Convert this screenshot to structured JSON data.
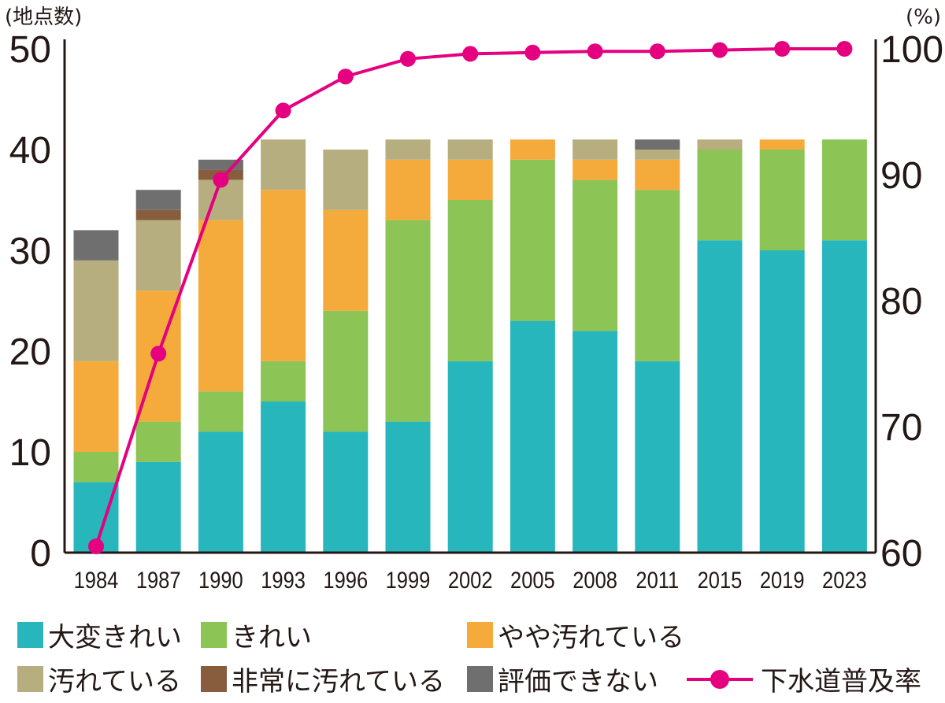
{
  "chart_data": {
    "type": "bar",
    "stacked": true,
    "categories": [
      "1984",
      "1987",
      "1990",
      "1993",
      "1996",
      "1999",
      "2002",
      "2005",
      "2008",
      "2011",
      "2015",
      "2019",
      "2023"
    ],
    "left_axis": {
      "label": "(地点数)",
      "range": [
        0,
        50
      ],
      "ticks": [
        0,
        10,
        20,
        30,
        40,
        50
      ]
    },
    "right_axis": {
      "label": "(%)",
      "range": [
        60,
        100
      ],
      "ticks": [
        60,
        70,
        80,
        90,
        100
      ]
    },
    "grid": false,
    "legend_position": "bottom",
    "series": [
      {
        "name": "大変きれい",
        "color": "#27B6BC",
        "axis": "left",
        "values": [
          7,
          9,
          12,
          15,
          12,
          13,
          19,
          23,
          22,
          19,
          31,
          30,
          31
        ]
      },
      {
        "name": "きれい",
        "color": "#8CC455",
        "axis": "left",
        "values": [
          3,
          4,
          4,
          4,
          12,
          20,
          16,
          16,
          15,
          17,
          9,
          10,
          10
        ]
      },
      {
        "name": "やや汚れている",
        "color": "#F4AB3C",
        "axis": "left",
        "values": [
          9,
          13,
          17,
          17,
          10,
          6,
          4,
          2,
          2,
          3,
          0,
          1,
          0
        ]
      },
      {
        "name": "汚れている",
        "color": "#B6AE7E",
        "axis": "left",
        "values": [
          10,
          7,
          4,
          5,
          6,
          2,
          2,
          0,
          2,
          1,
          1,
          0,
          0
        ]
      },
      {
        "name": "非常に汚れている",
        "color": "#875D3E",
        "axis": "left",
        "values": [
          0,
          1,
          1,
          0,
          0,
          0,
          0,
          0,
          0,
          0,
          0,
          0,
          0
        ]
      },
      {
        "name": "評価できない",
        "color": "#6F6F6F",
        "axis": "left",
        "values": [
          3,
          2,
          1,
          0,
          0,
          0,
          0,
          0,
          0,
          1,
          0,
          0,
          0
        ]
      },
      {
        "name": "下水道普及率",
        "color": "#E4007F",
        "axis": "right",
        "type": "line",
        "values": [
          60.5,
          75.8,
          89.6,
          95.1,
          97.8,
          99.2,
          99.6,
          99.7,
          99.8,
          99.8,
          99.9,
          100,
          100
        ]
      }
    ]
  }
}
